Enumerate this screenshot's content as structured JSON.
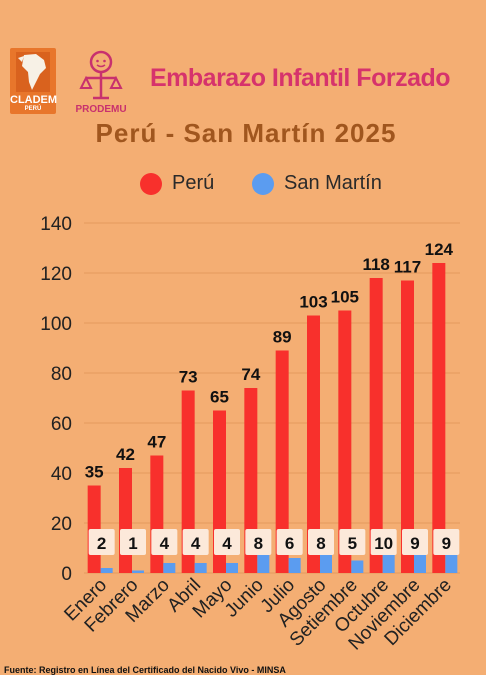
{
  "logos": {
    "cladem_name": "CLADEM",
    "cladem_sub": "PERÚ",
    "prodemu_name": "PRODEMU"
  },
  "header": {
    "title": "Embarazo Infantil Forzado",
    "subtitle": "Perú - San Martín  2025"
  },
  "footnote": "Fuente:  Registro en Línea del Certificado del Nacido Vivo - MINSA",
  "colors": {
    "background": "#F4AE73",
    "peru": "#F8302C",
    "san_martin": "#5B9CF0"
  },
  "chart_data": {
    "type": "bar",
    "categories": [
      "Enero",
      "Febrero",
      "Marzo",
      "Abril",
      "Mayo",
      "Junio",
      "Julio",
      "Agosto",
      "Setiembre",
      "Octubre",
      "Noviembre",
      "Diciembre"
    ],
    "series": [
      {
        "name": "Perú",
        "color": "#F8302C",
        "values": [
          35,
          42,
          47,
          73,
          65,
          74,
          89,
          103,
          105,
          118,
          117,
          124
        ]
      },
      {
        "name": "San Martín",
        "color": "#5B9CF0",
        "values": [
          2,
          1,
          4,
          4,
          4,
          8,
          6,
          8,
          5,
          10,
          9,
          9
        ]
      }
    ],
    "ylim": [
      0,
      140
    ],
    "yticks": [
      "0",
      "20",
      "40",
      "60",
      "80",
      "100",
      "120",
      "140"
    ],
    "grid": true,
    "legend": "top"
  }
}
